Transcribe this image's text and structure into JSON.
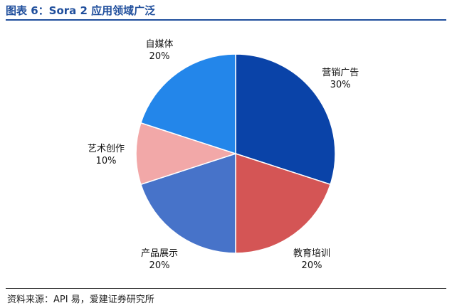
{
  "figure_title": "图表 6：Sora 2 应用领域广泛",
  "source_note": "资料来源：API 易，爱建证券研究所",
  "chart_data": {
    "type": "pie",
    "title": "",
    "start_angle_deg": 0,
    "direction": "clockwise",
    "slices": [
      {
        "label": "营销广告",
        "value": 30,
        "display": "30%",
        "color": "#0a43a8"
      },
      {
        "label": "教育培训",
        "value": 20,
        "display": "20%",
        "color": "#d45555"
      },
      {
        "label": "产品展示",
        "value": 20,
        "display": "20%",
        "color": "#4773c9"
      },
      {
        "label": "艺术创作",
        "value": 10,
        "display": "10%",
        "color": "#f2a8a8"
      },
      {
        "label": "自媒体",
        "value": 20,
        "display": "20%",
        "color": "#2386ea"
      }
    ],
    "legend": "none",
    "labels_outside": true
  }
}
